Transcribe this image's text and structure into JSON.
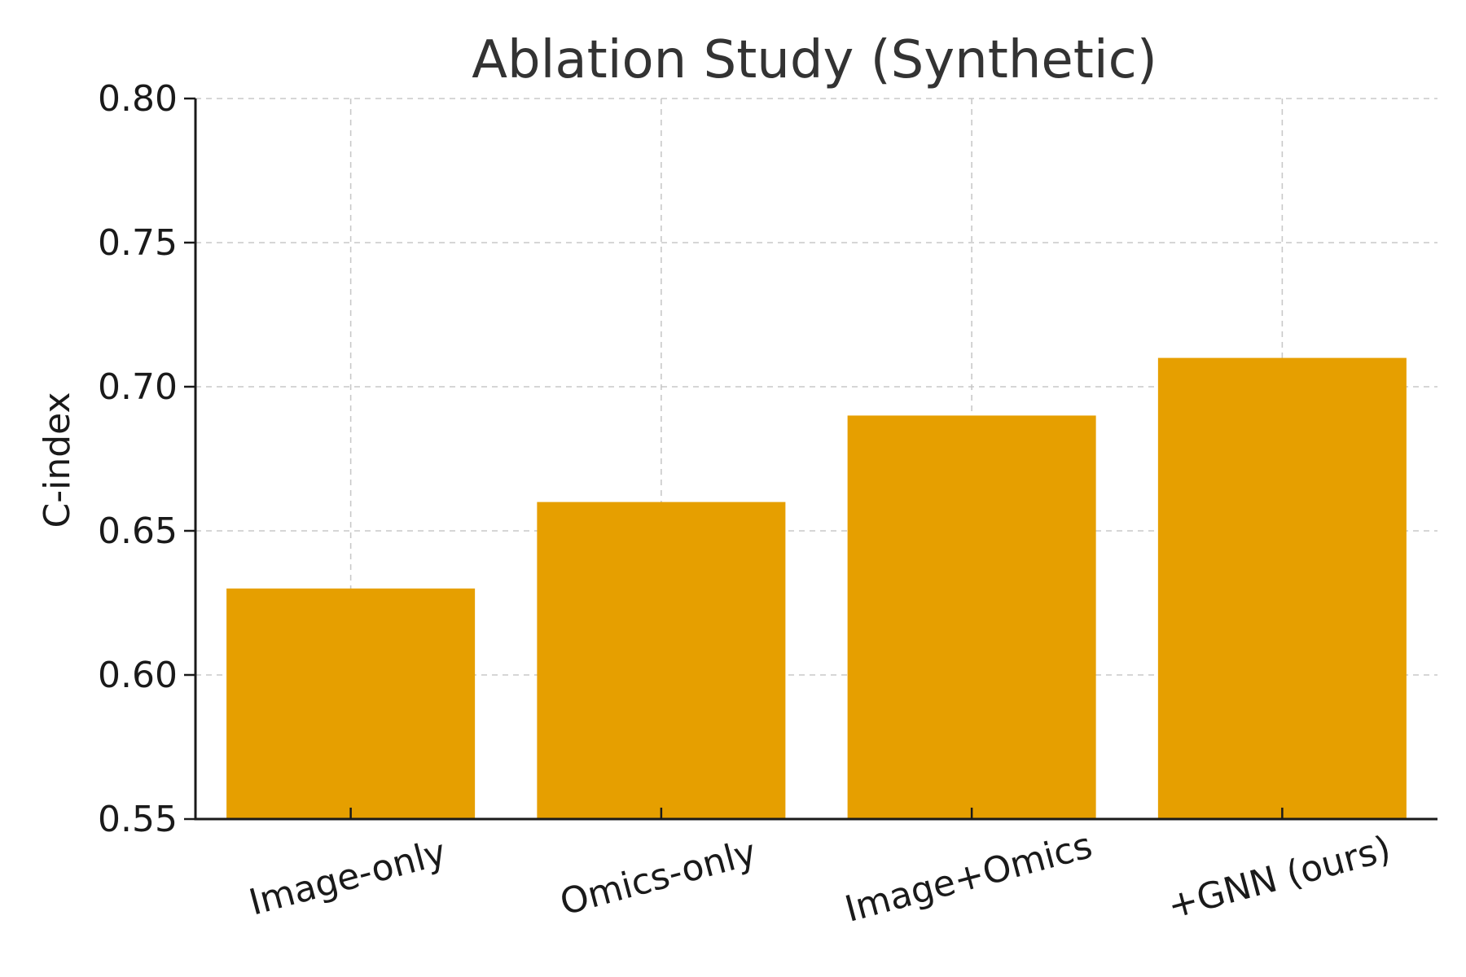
{
  "chart_data": {
    "type": "bar",
    "title": "Ablation Study (Synthetic)",
    "xlabel": "",
    "ylabel": "C-index",
    "categories": [
      "Image-only",
      "Omics-only",
      "Image+Omics",
      "+GNN (ours)"
    ],
    "values": [
      0.63,
      0.66,
      0.69,
      0.71
    ],
    "ylim": [
      0.55,
      0.8
    ],
    "yticks": [
      0.55,
      0.6,
      0.65,
      0.7,
      0.75,
      0.8
    ],
    "ytick_labels": [
      "0.55",
      "0.60",
      "0.65",
      "0.70",
      "0.75",
      "0.80"
    ],
    "grid": true,
    "bar_color": "#E69F00"
  }
}
